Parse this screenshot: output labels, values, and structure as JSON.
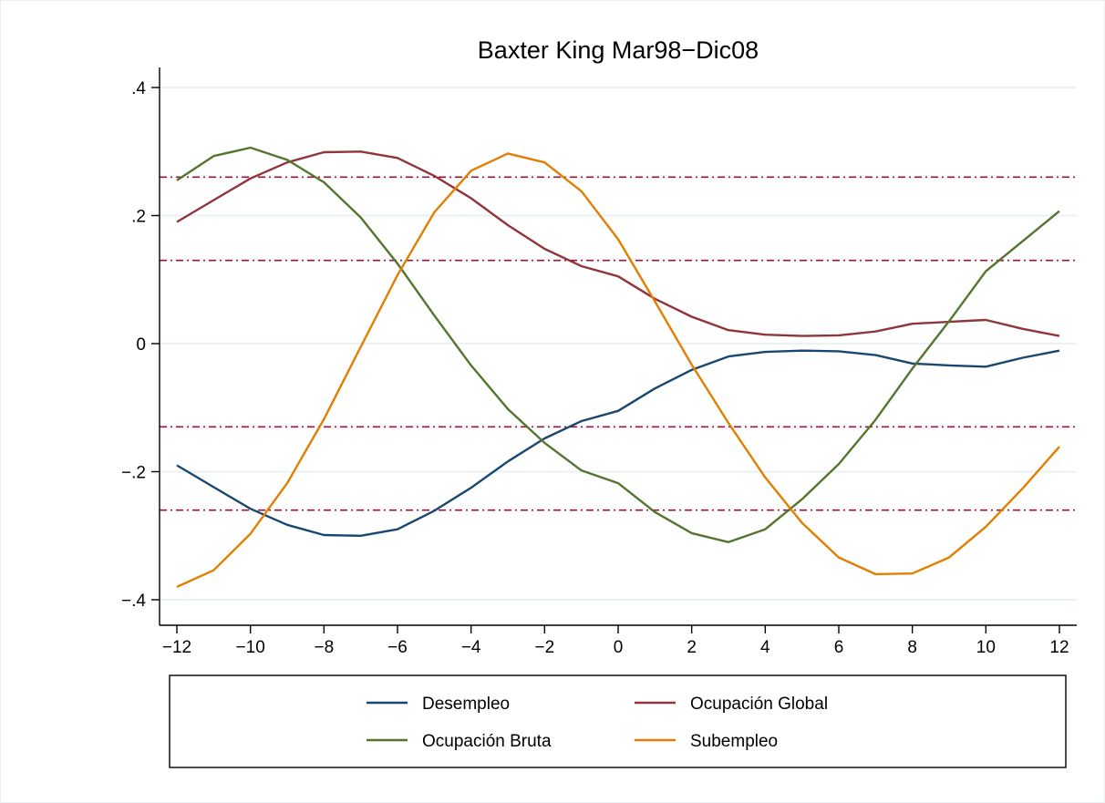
{
  "chart_data": {
    "type": "line",
    "title": "Baxter King Mar98−Dic08",
    "xlabel": "",
    "ylabel": "",
    "xlim": [
      -12,
      12
    ],
    "ylim": [
      -0.4,
      0.4
    ],
    "x": [
      -12,
      -11,
      -10,
      -9,
      -8,
      -7,
      -6,
      -5,
      -4,
      -3,
      -2,
      -1,
      0,
      1,
      2,
      3,
      4,
      5,
      6,
      7,
      8,
      9,
      10,
      11,
      12
    ],
    "xticks": [
      -12,
      -10,
      -8,
      -6,
      -4,
      -2,
      0,
      2,
      4,
      6,
      8,
      10,
      12
    ],
    "xtick_labels": [
      "−12",
      "−10",
      "−8",
      "−6",
      "−4",
      "−2",
      "0",
      "2",
      "4",
      "6",
      "8",
      "10",
      "12"
    ],
    "yticks": [
      -0.4,
      -0.2,
      0,
      0.2,
      0.4
    ],
    "ytick_labels": [
      "−.4",
      "−.2",
      "0",
      ".2",
      ".4"
    ],
    "grid": true,
    "legend_position": "bottom",
    "reference_lines": [
      0.26,
      0.13,
      -0.13,
      -0.26
    ],
    "reference_line_color": "#a0103a",
    "series": [
      {
        "name": "Desempleo",
        "color": "#1a476f",
        "values": [
          -0.19,
          -0.224,
          -0.258,
          -0.283,
          -0.299,
          -0.3,
          -0.29,
          -0.261,
          -0.225,
          -0.184,
          -0.148,
          -0.121,
          -0.105,
          -0.07,
          -0.041,
          -0.02,
          -0.013,
          -0.011,
          -0.012,
          -0.018,
          -0.031,
          -0.034,
          -0.036,
          -0.022,
          -0.011
        ]
      },
      {
        "name": "Ocupación Global",
        "color": "#90353b",
        "values": [
          0.19,
          0.224,
          0.258,
          0.283,
          0.299,
          0.3,
          0.29,
          0.262,
          0.227,
          0.185,
          0.148,
          0.121,
          0.105,
          0.07,
          0.042,
          0.021,
          0.014,
          0.012,
          0.013,
          0.019,
          0.031,
          0.034,
          0.037,
          0.023,
          0.012
        ]
      },
      {
        "name": "Ocupación Bruta",
        "color": "#55752f",
        "values": [
          0.255,
          0.293,
          0.306,
          0.287,
          0.252,
          0.197,
          0.125,
          0.044,
          -0.034,
          -0.102,
          -0.155,
          -0.198,
          -0.218,
          -0.263,
          -0.296,
          -0.31,
          -0.29,
          -0.243,
          -0.188,
          -0.119,
          -0.039,
          0.035,
          0.113,
          0.16,
          0.207
        ]
      },
      {
        "name": "Subempleo",
        "color": "#e37e00",
        "values": [
          -0.38,
          -0.354,
          -0.297,
          -0.218,
          -0.118,
          -0.005,
          0.107,
          0.205,
          0.27,
          0.297,
          0.283,
          0.238,
          0.163,
          0.066,
          -0.033,
          -0.124,
          -0.209,
          -0.28,
          -0.334,
          -0.36,
          -0.359,
          -0.334,
          -0.286,
          -0.226,
          -0.161
        ]
      }
    ]
  }
}
